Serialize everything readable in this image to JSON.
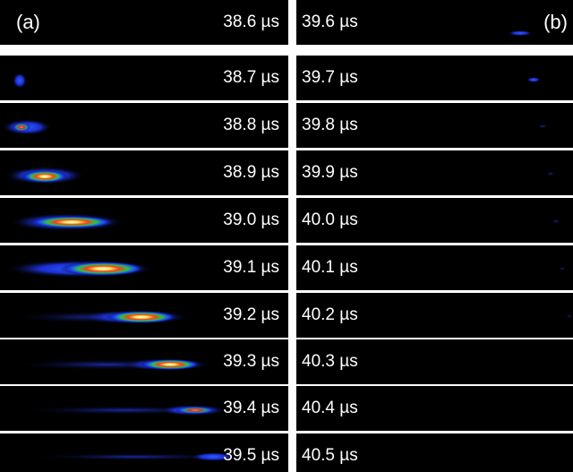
{
  "panels": {
    "a": {
      "label": "(a)",
      "times": [
        "38.6 µs",
        "38.7 µs",
        "38.8 µs",
        "38.9 µs",
        "39.0 µs",
        "39.1 µs",
        "39.2 µs",
        "39.3 µs",
        "39.4 µs",
        "39.5 µs"
      ]
    },
    "b": {
      "label": "(b)",
      "times": [
        "39.6 µs",
        "39.7 µs",
        "39.8 µs",
        "39.9 µs",
        "40.0 µs",
        "40.1 µs",
        "40.2 µs",
        "40.3 µs",
        "40.4 µs",
        "40.5 µs"
      ]
    }
  },
  "colors": {
    "background": "#000000",
    "divider": "#ffffff",
    "text": "#ffffff"
  }
}
